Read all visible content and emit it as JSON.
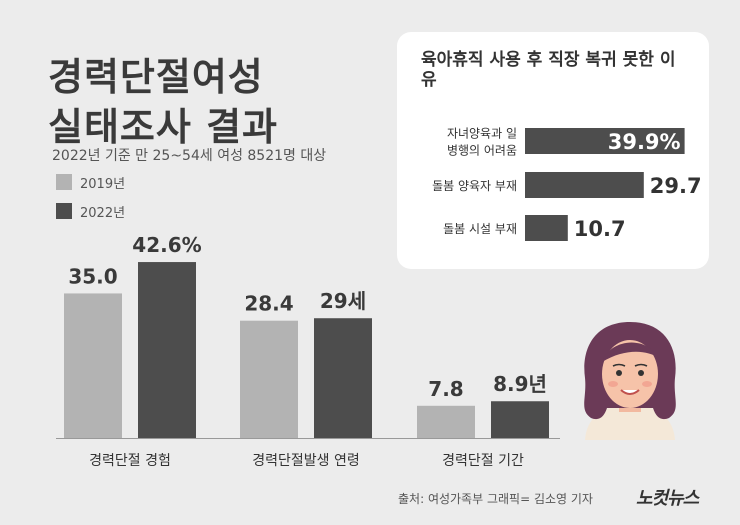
{
  "header": {
    "title_line1": "경력단절여성",
    "title_line2": "실태조사 결과",
    "subtitle": "2022년 기준 만 25~54세 여성 8521명 대상"
  },
  "legend": [
    {
      "label": "2019년",
      "color": "#b3b3b3"
    },
    {
      "label": "2022년",
      "color": "#4d4d4d"
    }
  ],
  "chart_data": [
    {
      "type": "bar",
      "categories": [
        "경력단절 경험",
        "경력단절발생 연령",
        "경력단절 기간"
      ],
      "series": [
        {
          "name": "2019년",
          "values": [
            35.0,
            28.4,
            7.8
          ],
          "labels": [
            "35.0",
            "28.4",
            "7.8"
          ],
          "color": "#b3b3b3"
        },
        {
          "name": "2022년",
          "values": [
            42.6,
            29,
            8.9
          ],
          "labels": [
            "42.6%",
            "29세",
            "8.9년"
          ],
          "color": "#4d4d4d"
        }
      ],
      "title": "경력단절여성 실태조사 결과",
      "subtitle": "2022년 기준 만 25~54세 여성 8521명 대상",
      "legend_position": "top-left",
      "grid": false
    },
    {
      "type": "bar",
      "orientation": "horizontal",
      "title": "육아휴직 사용 후 직장 복귀 못한 이유",
      "categories": [
        "자녀양육과 일 병행의 어려움",
        "돌봄 양육자 부재",
        "돌봄 시설 부재"
      ],
      "category_lines": [
        [
          "자녀양육과 일",
          "병행의 어려움"
        ],
        [
          "돌봄 양육자 부재"
        ],
        [
          "돌봄 시설 부재"
        ]
      ],
      "values": [
        39.9,
        29.7,
        10.7
      ],
      "labels": [
        "39.9%",
        "29.7",
        "10.7"
      ],
      "color": "#4d4d4d",
      "grid": false
    }
  ],
  "footer": {
    "source": "출처: 여성가족부    그래픽= 김소영 기자",
    "logo": "노컷뉴스"
  }
}
